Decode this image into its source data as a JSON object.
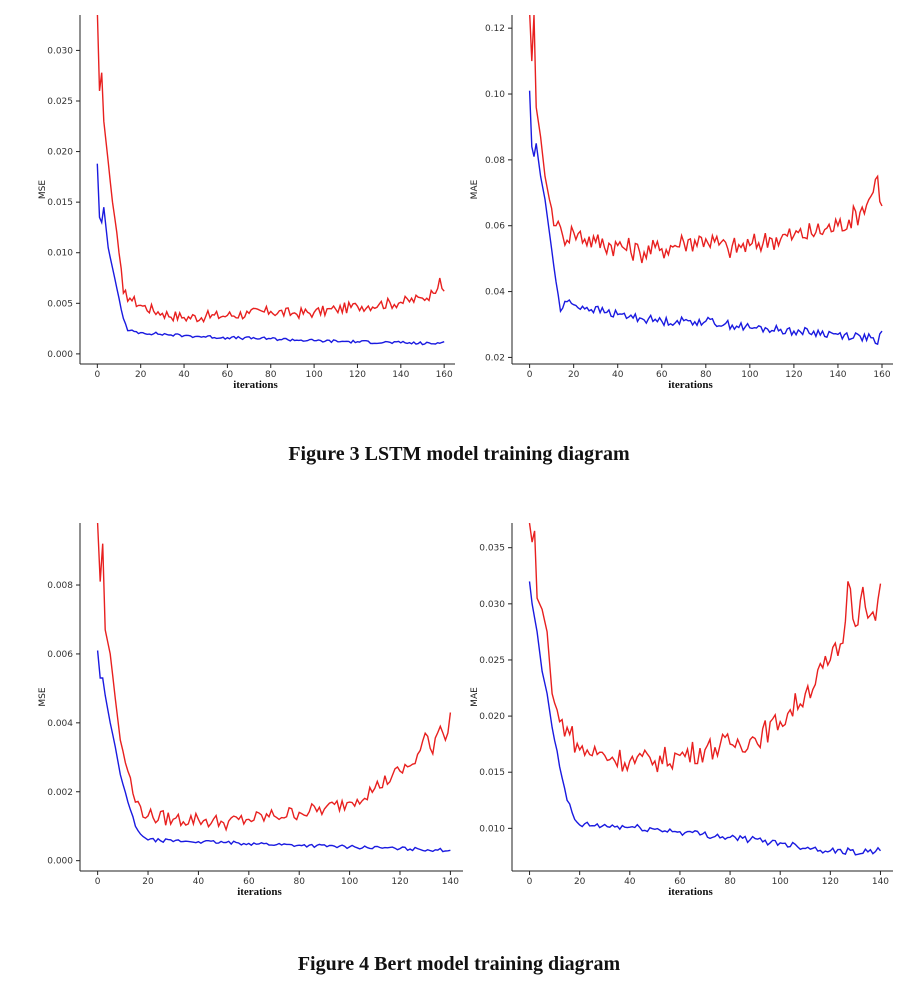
{
  "figures": [
    {
      "caption": "Figure 3 LSTM model training diagram"
    },
    {
      "caption": "Figure 4 Bert model training diagram"
    }
  ],
  "chart_data": [
    {
      "type": "line",
      "ylabel": "MSE",
      "xlabel": "iterations",
      "xlim": [
        -8,
        165
      ],
      "ylim": [
        -0.001,
        0.0335
      ],
      "xticks": [
        0,
        20,
        40,
        60,
        80,
        100,
        120,
        140,
        160
      ],
      "yticks": [
        0.0,
        0.005,
        0.01,
        0.015,
        0.02,
        0.025,
        0.03
      ],
      "ytick_labels": [
        "0.000",
        "0.005",
        "0.010",
        "0.015",
        "0.020",
        "0.025",
        "0.030"
      ],
      "series_colors": [
        "#e8201f",
        "#1a1ae0"
      ],
      "series": [
        {
          "anchors": [
            [
              0,
              0.034
            ],
            [
              1,
              0.026
            ],
            [
              2,
              0.0278
            ],
            [
              3,
              0.023
            ],
            [
              5,
              0.019
            ],
            [
              7,
              0.015
            ],
            [
              9,
              0.012
            ],
            [
              12,
              0.006
            ],
            [
              15,
              0.0055
            ],
            [
              20,
              0.0048
            ],
            [
              30,
              0.004
            ],
            [
              40,
              0.0036
            ],
            [
              50,
              0.0037
            ],
            [
              60,
              0.0038
            ],
            [
              70,
              0.004
            ],
            [
              80,
              0.0042
            ],
            [
              90,
              0.004
            ],
            [
              100,
              0.0041
            ],
            [
              110,
              0.0044
            ],
            [
              120,
              0.0047
            ],
            [
              130,
              0.0049
            ],
            [
              140,
              0.0051
            ],
            [
              150,
              0.0055
            ],
            [
              155,
              0.006
            ],
            [
              158,
              0.0075
            ],
            [
              160,
              0.0062
            ]
          ],
          "noise": 0.00055
        },
        {
          "anchors": [
            [
              0,
              0.0188
            ],
            [
              1,
              0.0135
            ],
            [
              2,
              0.013
            ],
            [
              3,
              0.0145
            ],
            [
              5,
              0.0105
            ],
            [
              7,
              0.0085
            ],
            [
              9,
              0.0065
            ],
            [
              12,
              0.0035
            ],
            [
              14,
              0.0023
            ],
            [
              20,
              0.0021
            ],
            [
              40,
              0.0018
            ],
            [
              60,
              0.0016
            ],
            [
              80,
              0.0015
            ],
            [
              100,
              0.0013
            ],
            [
              120,
              0.0012
            ],
            [
              140,
              0.0011
            ],
            [
              155,
              0.001
            ],
            [
              160,
              0.0012
            ]
          ],
          "noise": 0.00015
        }
      ]
    },
    {
      "type": "line",
      "ylabel": "MAE",
      "xlabel": "iterations",
      "xlim": [
        -8,
        165
      ],
      "ylim": [
        0.018,
        0.124
      ],
      "xticks": [
        0,
        20,
        40,
        60,
        80,
        100,
        120,
        140,
        160
      ],
      "yticks": [
        0.02,
        0.04,
        0.06,
        0.08,
        0.1,
        0.12
      ],
      "ytick_labels": [
        "0.02",
        "0.04",
        "0.06",
        "0.08",
        "0.10",
        "0.12"
      ],
      "series_colors": [
        "#e8201f",
        "#1a1ae0"
      ],
      "series": [
        {
          "anchors": [
            [
              0,
              0.125
            ],
            [
              1,
              0.11
            ],
            [
              2,
              0.124
            ],
            [
              3,
              0.096
            ],
            [
              5,
              0.087
            ],
            [
              7,
              0.075
            ],
            [
              9,
              0.068
            ],
            [
              12,
              0.06
            ],
            [
              15,
              0.057
            ],
            [
              20,
              0.058
            ],
            [
              30,
              0.055
            ],
            [
              40,
              0.054
            ],
            [
              50,
              0.052
            ],
            [
              60,
              0.053
            ],
            [
              70,
              0.055
            ],
            [
              80,
              0.056
            ],
            [
              90,
              0.053
            ],
            [
              100,
              0.054
            ],
            [
              110,
              0.056
            ],
            [
              120,
              0.057
            ],
            [
              130,
              0.058
            ],
            [
              140,
              0.06
            ],
            [
              150,
              0.064
            ],
            [
              155,
              0.069
            ],
            [
              158,
              0.075
            ],
            [
              160,
              0.066
            ]
          ],
          "noise": 0.0035
        },
        {
          "anchors": [
            [
              0,
              0.101
            ],
            [
              1,
              0.084
            ],
            [
              2,
              0.081
            ],
            [
              3,
              0.085
            ],
            [
              5,
              0.075
            ],
            [
              7,
              0.068
            ],
            [
              9,
              0.058
            ],
            [
              12,
              0.043
            ],
            [
              14,
              0.034
            ],
            [
              16,
              0.037
            ],
            [
              20,
              0.036
            ],
            [
              40,
              0.033
            ],
            [
              60,
              0.031
            ],
            [
              80,
              0.031
            ],
            [
              100,
              0.029
            ],
            [
              120,
              0.028
            ],
            [
              140,
              0.027
            ],
            [
              155,
              0.026
            ],
            [
              158,
              0.024
            ],
            [
              160,
              0.028
            ]
          ],
          "noise": 0.0013
        }
      ]
    },
    {
      "type": "line",
      "ylabel": "MSE",
      "xlabel": "iterations",
      "xlim": [
        -7,
        145
      ],
      "ylim": [
        -0.0003,
        0.0098
      ],
      "xticks": [
        0,
        20,
        40,
        60,
        80,
        100,
        120,
        140
      ],
      "yticks": [
        0.0,
        0.002,
        0.004,
        0.006,
        0.008
      ],
      "ytick_labels": [
        "0.000",
        "0.002",
        "0.004",
        "0.006",
        "0.008"
      ],
      "series_colors": [
        "#e8201f",
        "#1a1ae0"
      ],
      "series": [
        {
          "anchors": [
            [
              0,
              0.0098
            ],
            [
              1,
              0.0081
            ],
            [
              2,
              0.0092
            ],
            [
              3,
              0.0067
            ],
            [
              5,
              0.006
            ],
            [
              7,
              0.0047
            ],
            [
              9,
              0.0035
            ],
            [
              12,
              0.0026
            ],
            [
              15,
              0.0017
            ],
            [
              20,
              0.0013
            ],
            [
              30,
              0.0012
            ],
            [
              40,
              0.0012
            ],
            [
              50,
              0.0011
            ],
            [
              60,
              0.0012
            ],
            [
              70,
              0.0013
            ],
            [
              80,
              0.0014
            ],
            [
              90,
              0.0015
            ],
            [
              100,
              0.0017
            ],
            [
              110,
              0.0021
            ],
            [
              120,
              0.0026
            ],
            [
              125,
              0.0028
            ],
            [
              128,
              0.0032
            ],
            [
              130,
              0.0037
            ],
            [
              133,
              0.0031
            ],
            [
              136,
              0.0039
            ],
            [
              138,
              0.0035
            ],
            [
              140,
              0.0043
            ]
          ],
          "noise": 0.00022
        },
        {
          "anchors": [
            [
              0,
              0.0061
            ],
            [
              1,
              0.0053
            ],
            [
              2,
              0.0053
            ],
            [
              3,
              0.0048
            ],
            [
              5,
              0.004
            ],
            [
              7,
              0.0033
            ],
            [
              9,
              0.0025
            ],
            [
              12,
              0.0017
            ],
            [
              15,
              0.001
            ],
            [
              18,
              0.0007
            ],
            [
              20,
              0.0006
            ],
            [
              40,
              0.00055
            ],
            [
              60,
              0.0005
            ],
            [
              80,
              0.00045
            ],
            [
              100,
              0.0004
            ],
            [
              120,
              0.00035
            ],
            [
              140,
              0.0003
            ]
          ],
          "noise": 5e-05
        }
      ]
    },
    {
      "type": "line",
      "ylabel": "MAE",
      "xlabel": "iterations",
      "xlim": [
        -7,
        145
      ],
      "ylim": [
        0.0062,
        0.0372
      ],
      "xticks": [
        0,
        20,
        40,
        60,
        80,
        100,
        120,
        140
      ],
      "yticks": [
        0.01,
        0.015,
        0.02,
        0.025,
        0.03,
        0.035
      ],
      "ytick_labels": [
        "0.010",
        "0.015",
        "0.020",
        "0.025",
        "0.030",
        "0.035"
      ],
      "series_colors": [
        "#e8201f",
        "#1a1ae0"
      ],
      "series": [
        {
          "anchors": [
            [
              0,
              0.0372
            ],
            [
              1,
              0.0355
            ],
            [
              2,
              0.0365
            ],
            [
              3,
              0.0305
            ],
            [
              5,
              0.0295
            ],
            [
              7,
              0.0275
            ],
            [
              9,
              0.022
            ],
            [
              12,
              0.0195
            ],
            [
              15,
              0.019
            ],
            [
              20,
              0.017
            ],
            [
              30,
              0.0165
            ],
            [
              40,
              0.016
            ],
            [
              50,
              0.016
            ],
            [
              60,
              0.0165
            ],
            [
              70,
              0.017
            ],
            [
              80,
              0.0175
            ],
            [
              90,
              0.018
            ],
            [
              100,
              0.0195
            ],
            [
              110,
              0.022
            ],
            [
              120,
              0.025
            ],
            [
              125,
              0.0265
            ],
            [
              127,
              0.032
            ],
            [
              130,
              0.028
            ],
            [
              133,
              0.0315
            ],
            [
              136,
              0.029
            ],
            [
              138,
              0.0285
            ],
            [
              140,
              0.0318
            ]
          ],
          "noise": 0.0011
        },
        {
          "anchors": [
            [
              0,
              0.032
            ],
            [
              1,
              0.03
            ],
            [
              3,
              0.0275
            ],
            [
              5,
              0.024
            ],
            [
              7,
              0.022
            ],
            [
              9,
              0.019
            ],
            [
              12,
              0.0155
            ],
            [
              15,
              0.0125
            ],
            [
              18,
              0.0108
            ],
            [
              20,
              0.0103
            ],
            [
              40,
              0.0101
            ],
            [
              60,
              0.0097
            ],
            [
              80,
              0.0092
            ],
            [
              100,
              0.0087
            ],
            [
              120,
              0.008
            ],
            [
              135,
              0.0079
            ],
            [
              140,
              0.008
            ]
          ],
          "noise": 0.0003
        }
      ]
    }
  ]
}
